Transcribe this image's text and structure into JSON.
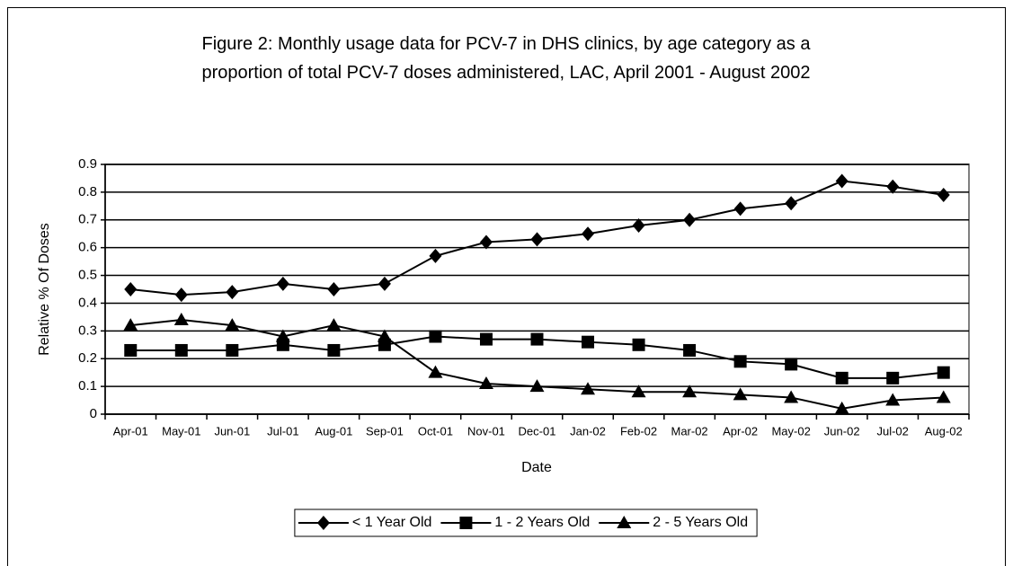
{
  "chart_data": {
    "type": "line",
    "title": "Figure 2: Monthly usage data for PCV-7 in DHS clinics, by age category as a proportion of total PCV-7 doses administered, LAC, April 2001 - August 2002",
    "x_label": "Date",
    "y_label": "Relative % Of Doses",
    "categories": [
      "Apr-01",
      "May-01",
      "Jun-01",
      "Jul-01",
      "Aug-01",
      "Sep-01",
      "Oct-01",
      "Nov-01",
      "Dec-01",
      "Jan-02",
      "Feb-02",
      "Mar-02",
      "Apr-02",
      "May-02",
      "Jun-02",
      "Jul-02",
      "Aug-02"
    ],
    "series": [
      {
        "name": "< 1 Year Old",
        "color": "#000000",
        "marker": "diamond",
        "values": [
          0.45,
          0.43,
          0.44,
          0.47,
          0.45,
          0.47,
          0.57,
          0.62,
          0.63,
          0.65,
          0.68,
          0.7,
          0.74,
          0.76,
          0.84,
          0.82,
          0.79
        ]
      },
      {
        "name": "1 - 2 Years Old",
        "color": "#000000",
        "marker": "square",
        "values": [
          0.23,
          0.23,
          0.23,
          0.25,
          0.23,
          0.25,
          0.28,
          0.27,
          0.27,
          0.26,
          0.25,
          0.23,
          0.19,
          0.18,
          0.13,
          0.13,
          0.15
        ]
      },
      {
        "name": "2 - 5 Years Old",
        "color": "#000000",
        "marker": "triangle",
        "values": [
          0.32,
          0.34,
          0.32,
          0.28,
          0.32,
          0.28,
          0.15,
          0.11,
          0.1,
          0.09,
          0.08,
          0.08,
          0.07,
          0.06,
          0.02,
          0.05,
          0.06
        ]
      }
    ],
    "ylim": [
      0,
      0.9
    ],
    "yticks": [
      0,
      0.1,
      0.2,
      0.3,
      0.4,
      0.5,
      0.6,
      0.7,
      0.8,
      0.9
    ],
    "grid": true,
    "legend": "bottom"
  }
}
